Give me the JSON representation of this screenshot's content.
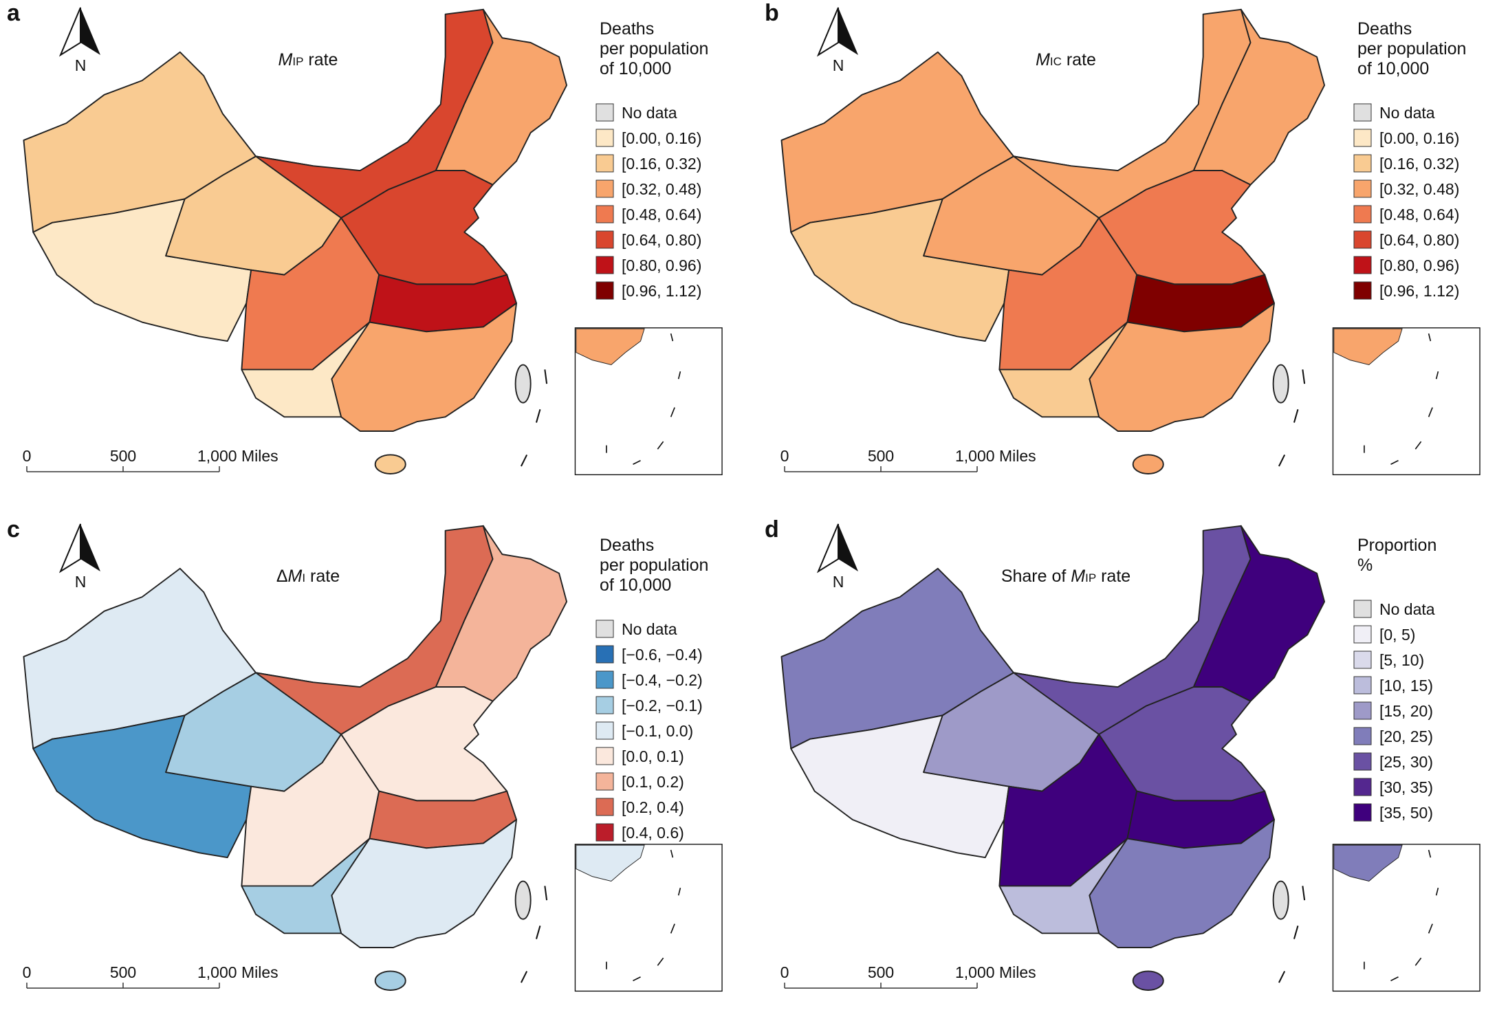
{
  "panels": [
    {
      "letter": "a",
      "title": {
        "italic": "M",
        "sub": "IP",
        "suffix": " rate"
      },
      "north": "N",
      "legend": {
        "title": [
          "Deaths",
          "per population",
          "of 10,000"
        ],
        "items": [
          {
            "label": "No data",
            "color": "#e0e0e0"
          },
          {
            "label": "[0.00, 0.16)",
            "color": "#fde8c6"
          },
          {
            "label": "[0.16, 0.32)",
            "color": "#f9cb92"
          },
          {
            "label": "[0.32, 0.48)",
            "color": "#f8a56c"
          },
          {
            "label": "[0.48, 0.64)",
            "color": "#ef7a50"
          },
          {
            "label": "[0.64, 0.80)",
            "color": "#d9462e"
          },
          {
            "label": "[0.80, 0.96)",
            "color": "#bf1218"
          },
          {
            "label": "[0.96, 1.12)",
            "color": "#7f0000"
          }
        ]
      },
      "scale_bar": {
        "labels": [
          "0",
          "500",
          "1,000 Miles"
        ]
      }
    },
    {
      "letter": "b",
      "title": {
        "italic": "M",
        "sub": "IC",
        "suffix": " rate"
      },
      "north": "N",
      "legend": {
        "title": [
          "Deaths",
          "per population",
          "of 10,000"
        ],
        "items": [
          {
            "label": "No data",
            "color": "#e0e0e0"
          },
          {
            "label": "[0.00, 0.16)",
            "color": "#fde8c6"
          },
          {
            "label": "[0.16, 0.32)",
            "color": "#f9cb92"
          },
          {
            "label": "[0.32, 0.48)",
            "color": "#f8a56c"
          },
          {
            "label": "[0.48, 0.64)",
            "color": "#ef7a50"
          },
          {
            "label": "[0.64, 0.80)",
            "color": "#d9462e"
          },
          {
            "label": "[0.80, 0.96)",
            "color": "#bf1218"
          },
          {
            "label": "[0.96, 1.12)",
            "color": "#7f0000"
          }
        ]
      },
      "scale_bar": {
        "labels": [
          "0",
          "500",
          "1,000 Miles"
        ]
      }
    },
    {
      "letter": "c",
      "title": {
        "prefix": "Δ",
        "italic": "M",
        "sub": "I",
        "suffix": " rate"
      },
      "north": "N",
      "legend": {
        "title": [
          "Deaths",
          "per population",
          "of 10,000"
        ],
        "items": [
          {
            "label": "No data",
            "color": "#e0e0e0"
          },
          {
            "label": "[−0.6, −0.4)",
            "color": "#2870b5"
          },
          {
            "label": "[−0.4, −0.2)",
            "color": "#4b97c9"
          },
          {
            "label": "[−0.2, −0.1)",
            "color": "#a6cee3"
          },
          {
            "label": "[−0.1, 0.0)",
            "color": "#deeaf3"
          },
          {
            "label": "[0.0, 0.1)",
            "color": "#fbe8dd"
          },
          {
            "label": "[0.1, 0.2)",
            "color": "#f4b49a"
          },
          {
            "label": "[0.2, 0.4)",
            "color": "#dc6b54"
          },
          {
            "label": "[0.4, 0.6)",
            "color": "#bb1d2a"
          }
        ]
      },
      "scale_bar": {
        "labels": [
          "0",
          "500",
          "1,000 Miles"
        ]
      }
    },
    {
      "letter": "d",
      "title": {
        "prefix": "Share of ",
        "italic": "M",
        "sub": "IP",
        "suffix": " rate"
      },
      "north": "N",
      "legend": {
        "title": [
          "Proportion",
          "%"
        ],
        "items": [
          {
            "label": "No data",
            "color": "#e0e0e0"
          },
          {
            "label": "[0, 5)",
            "color": "#f0eff6"
          },
          {
            "label": "[5, 10)",
            "color": "#dadaeb"
          },
          {
            "label": "[10, 15)",
            "color": "#bcbddc"
          },
          {
            "label": "[15, 20)",
            "color": "#9e9ac8"
          },
          {
            "label": "[20, 25)",
            "color": "#807dba"
          },
          {
            "label": "[25, 30)",
            "color": "#6a51a3"
          },
          {
            "label": "[30, 35)",
            "color": "#54278f"
          },
          {
            "label": "[35, 50)",
            "color": "#3f007d"
          }
        ]
      },
      "scale_bar": {
        "labels": [
          "0",
          "500",
          "1,000 Miles"
        ]
      }
    }
  ]
}
